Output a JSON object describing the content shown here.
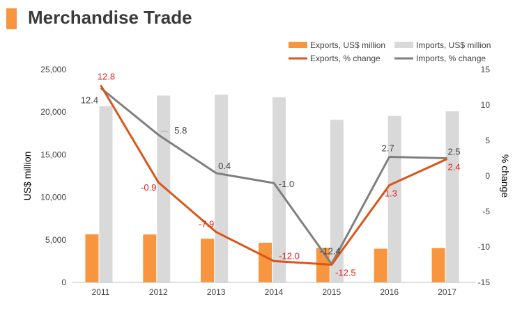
{
  "title": "Merchandise Trade",
  "chart_data": {
    "type": "bar",
    "categories": [
      "2011",
      "2012",
      "2013",
      "2014",
      "2015",
      "2016",
      "2017"
    ],
    "series": [
      {
        "name": "Exports, US$ million",
        "type": "bar",
        "axis": "left",
        "color": "#F7963E",
        "values": [
          5650,
          5630,
          5130,
          4660,
          4070,
          3960,
          4030
        ]
      },
      {
        "name": "Imports, US$ million",
        "type": "bar",
        "axis": "left",
        "color": "#D9D9D9",
        "values": [
          20700,
          21950,
          22060,
          21750,
          19100,
          19550,
          20100
        ]
      },
      {
        "name": "Exports, % change",
        "type": "line",
        "axis": "right",
        "color": "#D9561A",
        "values": [
          12.8,
          -0.9,
          -7.9,
          -12.0,
          -12.5,
          -1.3,
          2.4
        ],
        "labels": [
          "12.8",
          "-0.9",
          "-7.9",
          "-12.0",
          "-12.5",
          "-1.3",
          "2.4"
        ],
        "label_color": "#E31E1E"
      },
      {
        "name": "Imports, % change",
        "type": "line",
        "axis": "right",
        "color": "#7F7F7F",
        "values": [
          12.4,
          5.8,
          0.4,
          -1.0,
          -12.4,
          2.7,
          2.5
        ],
        "labels": [
          "12.4",
          "5.8",
          "0.4",
          "-1.0",
          "-12.4",
          "2.7",
          "2.5"
        ],
        "label_color": "#404040"
      }
    ],
    "ylabel": "US$ million",
    "y2label": "% change",
    "ylim": [
      0,
      25000
    ],
    "y2lim": [
      -15,
      15
    ],
    "yticks": [
      "0",
      "5,000",
      "10,000",
      "15,000",
      "20,000",
      "25,000"
    ],
    "y2ticks": [
      "-15",
      "-10",
      "-5",
      "0",
      "5",
      "10",
      "15"
    ],
    "grid": false,
    "legend": "top-right"
  }
}
